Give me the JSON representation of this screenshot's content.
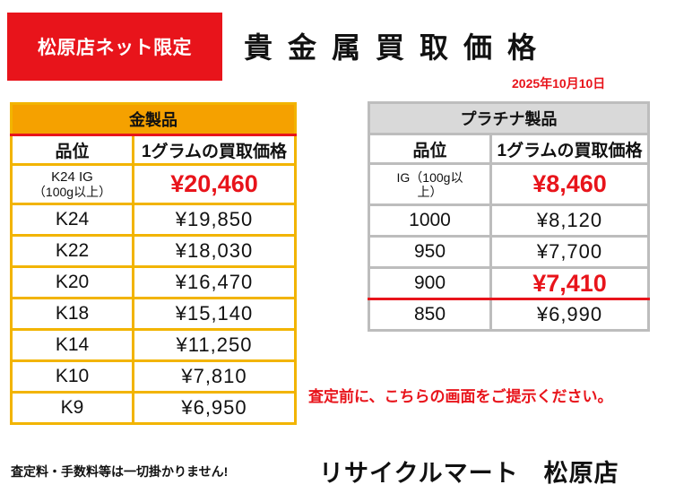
{
  "badge": "松原店ネット限定",
  "title": "貴金属買取価格",
  "date": "2025年10月10日",
  "gold": {
    "caption": "金製品",
    "col_grade": "品位",
    "col_price": "1グラムの買取価格",
    "ig_grade_line1": "K24 IG",
    "ig_grade_line2": "（100g以上）",
    "ig_price": "¥20,460",
    "rows": [
      {
        "grade": "K24",
        "price": "¥19,850"
      },
      {
        "grade": "K22",
        "price": "¥18,030"
      },
      {
        "grade": "K20",
        "price": "¥16,470"
      },
      {
        "grade": "K18",
        "price": "¥15,140"
      },
      {
        "grade": "K14",
        "price": "¥11,250"
      },
      {
        "grade": "K10",
        "price": "¥7,810"
      },
      {
        "grade": "K9",
        "price": "¥6,950"
      }
    ]
  },
  "platinum": {
    "caption": "プラチナ製品",
    "col_grade": "品位",
    "col_price": "1グラムの買取価格",
    "ig_grade_line1": "IG（100g以",
    "ig_grade_line2": "上）",
    "ig_price": "¥8,460",
    "rows": [
      {
        "grade": "1000",
        "price": "¥8,120"
      },
      {
        "grade": "950",
        "price": "¥7,700"
      },
      {
        "grade": "900",
        "price": "¥7,410"
      },
      {
        "grade": "850",
        "price": "¥6,990"
      }
    ]
  },
  "note": "査定前に、こちらの画面をご提示ください。",
  "fees": "査定料・手数料等は一切掛かりません!",
  "store": "リサイクルマート　松原店",
  "colors": {
    "accent_red": "#e8141b",
    "gold_header": "#f5a100",
    "gold_border": "#f2b400",
    "platinum_header": "#d9d9d9"
  }
}
